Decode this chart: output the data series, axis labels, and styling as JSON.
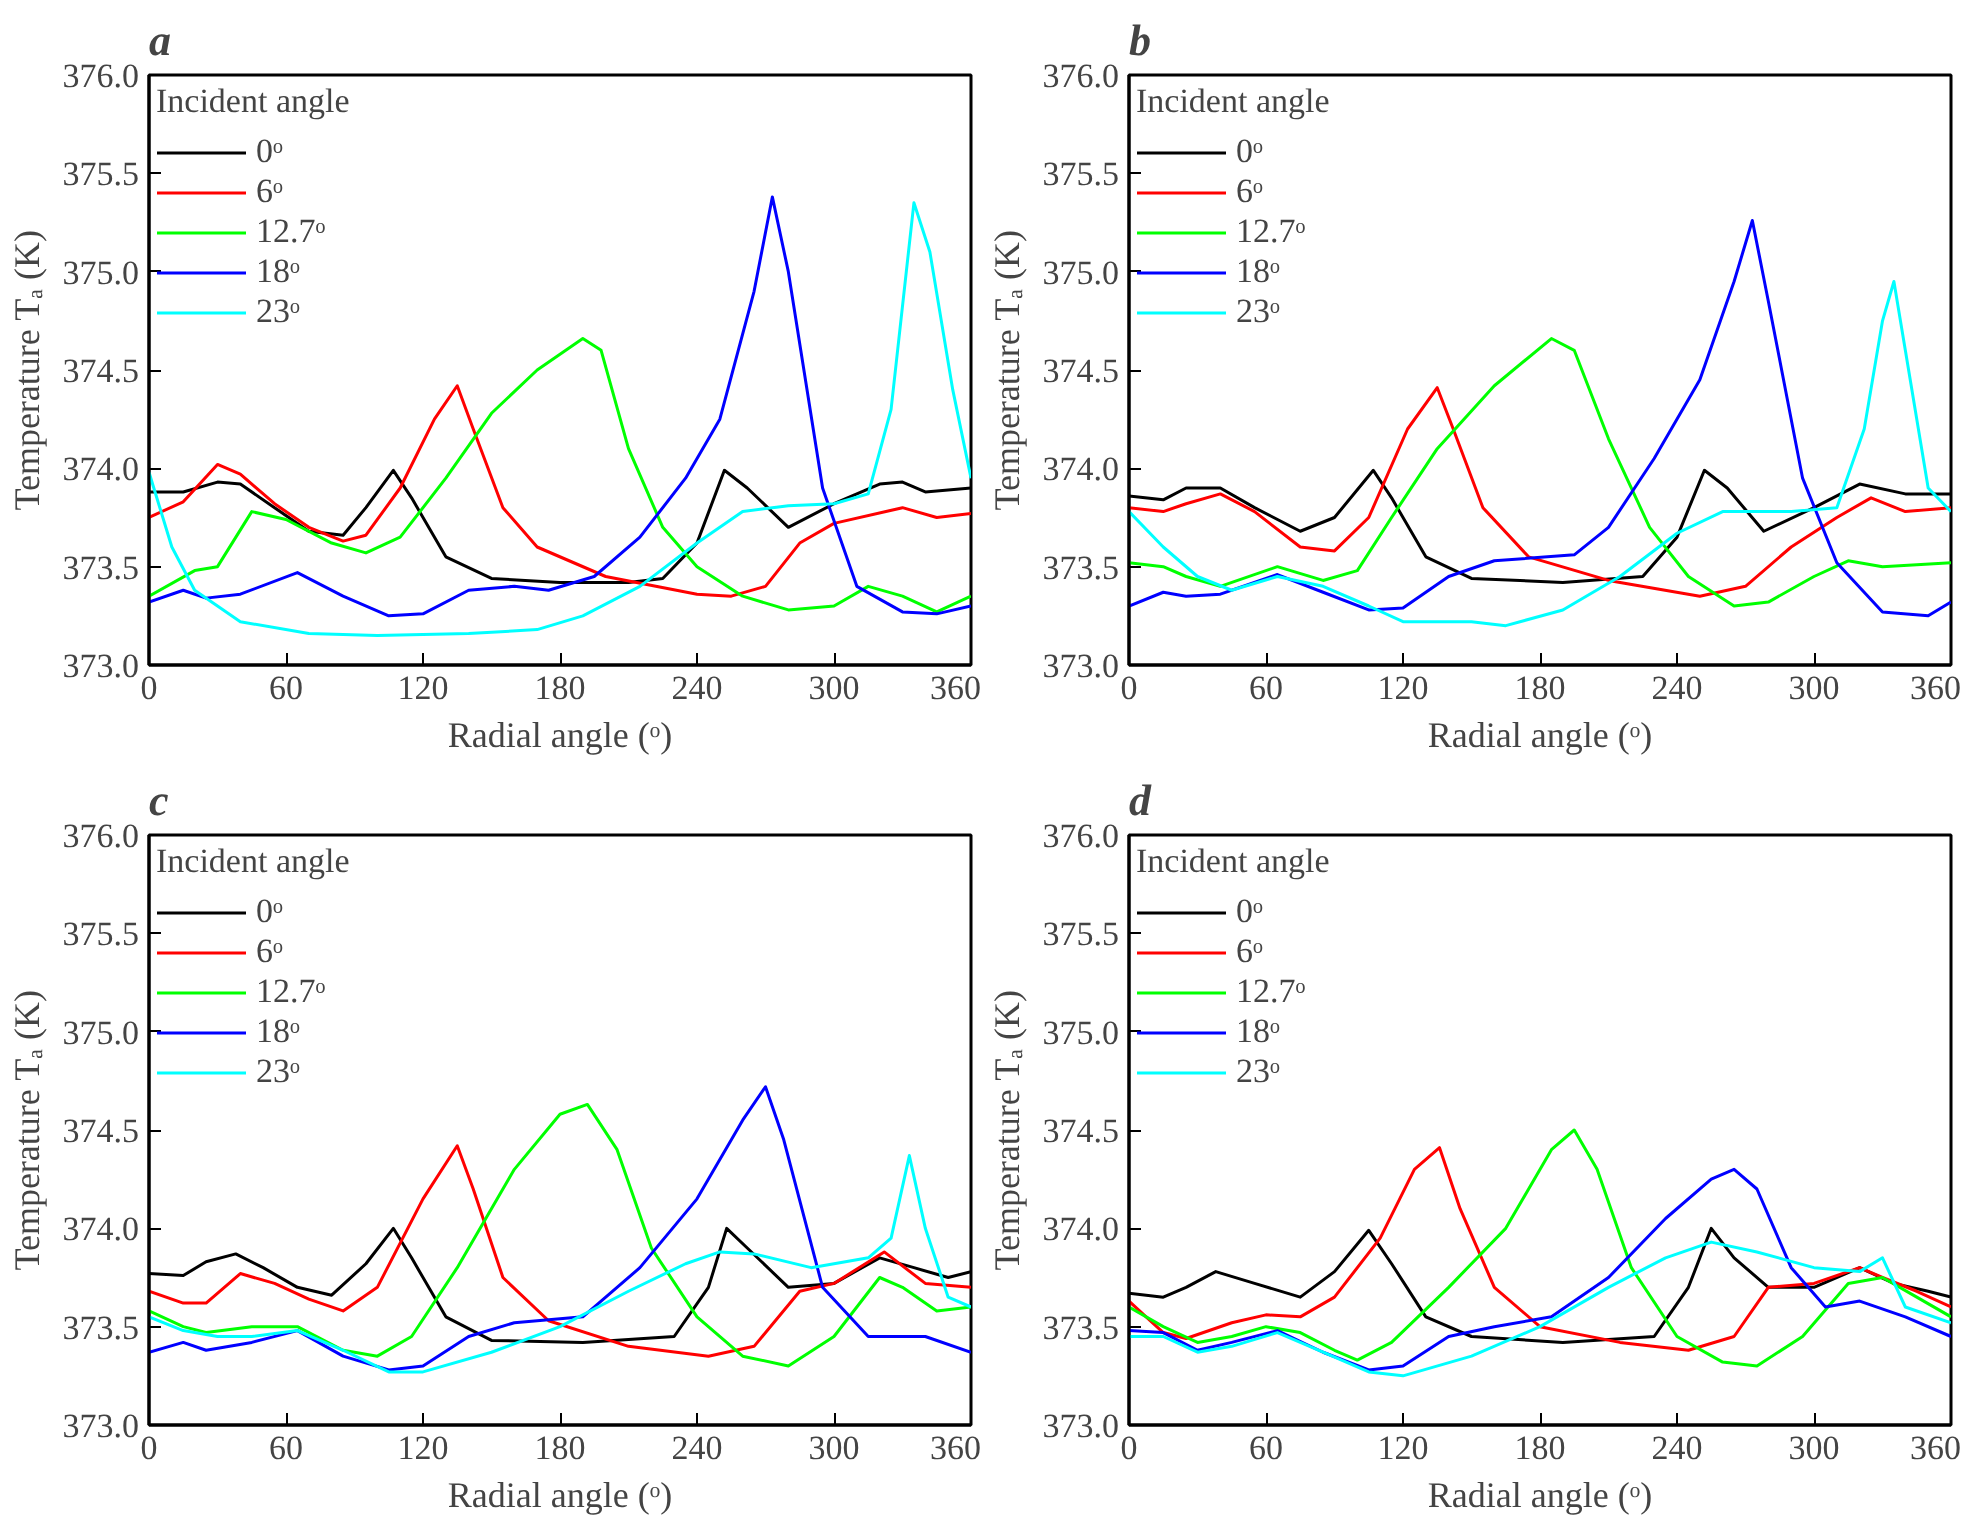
{
  "chart_data": [
    {
      "type": "line",
      "title": "a",
      "xlabel": "Radial angle (ᵒ)",
      "ylabel": "Temperature Tₐ (K)",
      "legend_title": "Incident angle",
      "legend": "top left",
      "grid": false,
      "xlim": [
        0,
        360
      ],
      "xticks": [
        0,
        60,
        120,
        180,
        240,
        300,
        360
      ],
      "ylim": [
        373.0,
        376.0
      ],
      "yticks": [
        {
          "value": 373.0,
          "label": "373.0"
        },
        {
          "value": 373.5,
          "label": "373.5"
        },
        {
          "value": 374.0,
          "label": "374.0"
        },
        {
          "value": 374.5,
          "label": "374.5"
        },
        {
          "value": 375.0,
          "label": "375.0"
        },
        {
          "value": 375.5,
          "label": "375.5"
        },
        {
          "value": 376.0,
          "label": "376.0"
        }
      ],
      "series": [
        {
          "name": "0ᵒ",
          "color": "#000000",
          "x": [
            0,
            15,
            30,
            40,
            55,
            70,
            85,
            95,
            107,
            115,
            130,
            150,
            180,
            210,
            225,
            240,
            252,
            262,
            280,
            300,
            320,
            330,
            340,
            360
          ],
          "values": [
            373.88,
            373.88,
            373.93,
            373.92,
            373.8,
            373.68,
            373.66,
            373.8,
            373.99,
            373.85,
            373.55,
            373.44,
            373.42,
            373.42,
            373.44,
            373.62,
            373.99,
            373.9,
            373.7,
            373.82,
            373.92,
            373.93,
            373.88,
            373.9
          ]
        },
        {
          "name": "6ᵒ",
          "color": "#ff0000",
          "x": [
            0,
            15,
            30,
            40,
            55,
            70,
            85,
            95,
            110,
            125,
            135,
            142,
            155,
            170,
            200,
            240,
            255,
            270,
            285,
            300,
            330,
            345,
            360
          ],
          "values": [
            373.75,
            373.83,
            374.02,
            373.97,
            373.82,
            373.7,
            373.63,
            373.66,
            373.9,
            374.25,
            374.42,
            374.2,
            373.8,
            373.6,
            373.45,
            373.36,
            373.35,
            373.4,
            373.62,
            373.72,
            373.8,
            373.75,
            373.77
          ]
        },
        {
          "name": "12.7ᵒ",
          "color": "#00ff00",
          "x": [
            0,
            20,
            30,
            45,
            60,
            80,
            95,
            110,
            130,
            150,
            170,
            190,
            198,
            210,
            225,
            240,
            260,
            280,
            300,
            315,
            330,
            345,
            360
          ],
          "values": [
            373.35,
            373.48,
            373.5,
            373.78,
            373.74,
            373.62,
            373.57,
            373.65,
            373.95,
            374.28,
            374.5,
            374.66,
            374.6,
            374.1,
            373.7,
            373.5,
            373.35,
            373.28,
            373.3,
            373.4,
            373.35,
            373.27,
            373.35
          ]
        },
        {
          "name": "18ᵒ",
          "color": "#0000ff",
          "x": [
            0,
            15,
            25,
            40,
            65,
            85,
            105,
            120,
            140,
            160,
            175,
            195,
            215,
            235,
            250,
            265,
            273,
            280,
            295,
            310,
            330,
            345,
            360
          ],
          "values": [
            373.32,
            373.38,
            373.34,
            373.36,
            373.47,
            373.35,
            373.25,
            373.26,
            373.38,
            373.4,
            373.38,
            373.45,
            373.65,
            373.95,
            374.25,
            374.9,
            375.38,
            375.0,
            373.9,
            373.4,
            373.27,
            373.26,
            373.3
          ]
        },
        {
          "name": "23ᵒ",
          "color": "#00ffff",
          "x": [
            0,
            10,
            20,
            40,
            70,
            100,
            140,
            170,
            190,
            215,
            240,
            260,
            280,
            300,
            315,
            325,
            335,
            342,
            352,
            360
          ],
          "values": [
            373.98,
            373.6,
            373.38,
            373.22,
            373.16,
            373.15,
            373.16,
            373.18,
            373.25,
            373.4,
            373.62,
            373.78,
            373.81,
            373.82,
            373.87,
            374.3,
            375.35,
            375.1,
            374.4,
            373.95
          ]
        }
      ]
    },
    {
      "type": "line",
      "title": "b",
      "xlabel": "Radial angle (ᵒ)",
      "ylabel": "Temperature Tₐ (K)",
      "legend_title": "Incident angle",
      "legend": "top left",
      "grid": false,
      "xlim": [
        0,
        360
      ],
      "xticks": [
        0,
        60,
        120,
        180,
        240,
        300,
        360
      ],
      "ylim": [
        373.0,
        376.0
      ],
      "yticks": [
        {
          "value": 373.0,
          "label": "373.0"
        },
        {
          "value": 373.5,
          "label": "373.5"
        },
        {
          "value": 374.0,
          "label": "374.0"
        },
        {
          "value": 374.5,
          "label": "374.5"
        },
        {
          "value": 375.0,
          "label": "375.0"
        },
        {
          "value": 375.5,
          "label": "375.5"
        },
        {
          "value": 376.0,
          "label": "376.0"
        }
      ],
      "series": [
        {
          "name": "0ᵒ",
          "color": "#000000",
          "x": [
            0,
            15,
            25,
            40,
            55,
            75,
            90,
            107,
            115,
            130,
            150,
            190,
            225,
            240,
            252,
            262,
            278,
            300,
            320,
            340,
            360
          ],
          "values": [
            373.86,
            373.84,
            373.9,
            373.9,
            373.8,
            373.68,
            373.75,
            373.99,
            373.85,
            373.55,
            373.44,
            373.42,
            373.45,
            373.65,
            373.99,
            373.9,
            373.68,
            373.8,
            373.92,
            373.87,
            373.87
          ]
        },
        {
          "name": "6ᵒ",
          "color": "#ff0000",
          "x": [
            0,
            15,
            25,
            40,
            55,
            75,
            90,
            105,
            122,
            135,
            142,
            155,
            175,
            210,
            250,
            270,
            290,
            310,
            325,
            340,
            360
          ],
          "values": [
            373.8,
            373.78,
            373.82,
            373.87,
            373.78,
            373.6,
            373.58,
            373.75,
            374.2,
            374.41,
            374.2,
            373.8,
            373.55,
            373.43,
            373.35,
            373.4,
            373.6,
            373.75,
            373.85,
            373.78,
            373.8
          ]
        },
        {
          "name": "12.7ᵒ",
          "color": "#00ff00",
          "x": [
            0,
            15,
            25,
            40,
            65,
            85,
            100,
            115,
            135,
            160,
            185,
            195,
            210,
            228,
            245,
            265,
            280,
            300,
            315,
            330,
            360
          ],
          "values": [
            373.52,
            373.5,
            373.45,
            373.4,
            373.5,
            373.43,
            373.48,
            373.75,
            374.1,
            374.42,
            374.66,
            374.6,
            374.15,
            373.7,
            373.45,
            373.3,
            373.32,
            373.45,
            373.53,
            373.5,
            373.52
          ]
        },
        {
          "name": "18ᵒ",
          "color": "#0000ff",
          "x": [
            0,
            15,
            25,
            40,
            65,
            85,
            105,
            120,
            140,
            160,
            195,
            210,
            230,
            250,
            265,
            273,
            280,
            295,
            310,
            330,
            350,
            360
          ],
          "values": [
            373.3,
            373.37,
            373.35,
            373.36,
            373.46,
            373.37,
            373.28,
            373.29,
            373.45,
            373.53,
            373.56,
            373.7,
            374.05,
            374.45,
            374.95,
            375.26,
            374.85,
            373.95,
            373.52,
            373.27,
            373.25,
            373.32
          ]
        },
        {
          "name": "23ᵒ",
          "color": "#00ffff",
          "x": [
            0,
            15,
            30,
            45,
            65,
            85,
            105,
            120,
            150,
            165,
            190,
            215,
            240,
            260,
            290,
            310,
            322,
            330,
            335,
            340,
            350,
            360
          ],
          "values": [
            373.78,
            373.6,
            373.45,
            373.38,
            373.45,
            373.4,
            373.3,
            373.22,
            373.22,
            373.2,
            373.28,
            373.45,
            373.67,
            373.78,
            373.78,
            373.8,
            374.2,
            374.75,
            374.95,
            374.6,
            373.9,
            373.78
          ]
        }
      ]
    },
    {
      "type": "line",
      "title": "c",
      "xlabel": "Radial angle (ᵒ)",
      "ylabel": "Temperature Tₐ (K)",
      "legend_title": "Incident angle",
      "legend": "top left",
      "grid": false,
      "xlim": [
        0,
        360
      ],
      "xticks": [
        0,
        60,
        120,
        180,
        240,
        300,
        360
      ],
      "ylim": [
        373.0,
        376.0
      ],
      "yticks": [
        {
          "value": 373.0,
          "label": "373.0"
        },
        {
          "value": 373.5,
          "label": "373.5"
        },
        {
          "value": 374.0,
          "label": "374.0"
        },
        {
          "value": 374.5,
          "label": "374.5"
        },
        {
          "value": 375.0,
          "label": "375.0"
        },
        {
          "value": 375.5,
          "label": "375.5"
        },
        {
          "value": 376.0,
          "label": "376.0"
        }
      ],
      "series": [
        {
          "name": "0ᵒ",
          "color": "#000000",
          "x": [
            0,
            15,
            25,
            38,
            50,
            65,
            80,
            95,
            107,
            115,
            130,
            150,
            190,
            230,
            245,
            253,
            262,
            280,
            300,
            320,
            335,
            350,
            360
          ],
          "values": [
            373.77,
            373.76,
            373.83,
            373.87,
            373.8,
            373.7,
            373.66,
            373.82,
            374.0,
            373.85,
            373.55,
            373.43,
            373.42,
            373.45,
            373.7,
            374.0,
            373.9,
            373.7,
            373.72,
            373.85,
            373.8,
            373.75,
            373.78
          ]
        },
        {
          "name": "6ᵒ",
          "color": "#ff0000",
          "x": [
            0,
            15,
            25,
            40,
            55,
            70,
            85,
            100,
            120,
            135,
            142,
            155,
            175,
            210,
            245,
            265,
            285,
            300,
            322,
            340,
            360
          ],
          "values": [
            373.68,
            373.62,
            373.62,
            373.77,
            373.72,
            373.64,
            373.58,
            373.7,
            374.15,
            374.42,
            374.2,
            373.75,
            373.53,
            373.4,
            373.35,
            373.4,
            373.68,
            373.72,
            373.88,
            373.72,
            373.7
          ]
        },
        {
          "name": "12.7ᵒ",
          "color": "#00ff00",
          "x": [
            0,
            15,
            25,
            45,
            65,
            85,
            100,
            115,
            135,
            160,
            180,
            192,
            205,
            220,
            240,
            260,
            280,
            300,
            320,
            330,
            345,
            360
          ],
          "values": [
            373.58,
            373.5,
            373.47,
            373.5,
            373.5,
            373.38,
            373.35,
            373.45,
            373.8,
            374.3,
            374.58,
            374.63,
            374.4,
            373.9,
            373.55,
            373.35,
            373.3,
            373.45,
            373.75,
            373.7,
            373.58,
            373.6
          ]
        },
        {
          "name": "18ᵒ",
          "color": "#0000ff",
          "x": [
            0,
            15,
            25,
            45,
            65,
            85,
            105,
            120,
            140,
            160,
            190,
            215,
            240,
            260,
            270,
            278,
            295,
            315,
            340,
            360
          ],
          "values": [
            373.37,
            373.42,
            373.38,
            373.42,
            373.48,
            373.35,
            373.28,
            373.3,
            373.45,
            373.52,
            373.55,
            373.8,
            374.15,
            374.55,
            374.72,
            374.45,
            373.7,
            373.45,
            373.45,
            373.37
          ]
        },
        {
          "name": "23ᵒ",
          "color": "#00ffff",
          "x": [
            0,
            15,
            30,
            45,
            65,
            85,
            105,
            120,
            150,
            180,
            210,
            235,
            250,
            265,
            290,
            315,
            325,
            333,
            340,
            350,
            360
          ],
          "values": [
            373.55,
            373.48,
            373.45,
            373.45,
            373.48,
            373.38,
            373.27,
            373.27,
            373.37,
            373.5,
            373.68,
            373.82,
            373.88,
            373.87,
            373.8,
            373.85,
            373.95,
            374.37,
            374.0,
            373.65,
            373.6
          ]
        }
      ]
    },
    {
      "type": "line",
      "title": "d",
      "xlabel": "Radial angle (ᵒ)",
      "ylabel": "Temperature Tₐ (K)",
      "legend_title": "Incident angle",
      "legend": "top left",
      "grid": false,
      "xlim": [
        0,
        360
      ],
      "xticks": [
        0,
        60,
        120,
        180,
        240,
        300,
        360
      ],
      "ylim": [
        373.0,
        376.0
      ],
      "yticks": [
        {
          "value": 373.0,
          "label": "373.0"
        },
        {
          "value": 373.5,
          "label": "373.5"
        },
        {
          "value": 374.0,
          "label": "374.0"
        },
        {
          "value": 374.5,
          "label": "374.5"
        },
        {
          "value": 375.0,
          "label": "375.0"
        },
        {
          "value": 375.5,
          "label": "375.5"
        },
        {
          "value": 376.0,
          "label": "376.0"
        }
      ],
      "series": [
        {
          "name": "0ᵒ",
          "color": "#000000",
          "x": [
            0,
            15,
            25,
            38,
            55,
            75,
            90,
            105,
            115,
            130,
            150,
            190,
            230,
            245,
            255,
            265,
            280,
            300,
            320,
            335,
            350,
            360
          ],
          "values": [
            373.67,
            373.65,
            373.7,
            373.78,
            373.72,
            373.65,
            373.78,
            373.99,
            373.82,
            373.55,
            373.45,
            373.42,
            373.45,
            373.7,
            374.0,
            373.85,
            373.7,
            373.7,
            373.8,
            373.72,
            373.68,
            373.65
          ]
        },
        {
          "name": "6ᵒ",
          "color": "#ff0000",
          "x": [
            0,
            15,
            25,
            45,
            60,
            75,
            90,
            110,
            125,
            136,
            145,
            160,
            180,
            215,
            245,
            265,
            280,
            300,
            320,
            330,
            345,
            360
          ],
          "values": [
            373.63,
            373.47,
            373.44,
            373.52,
            373.56,
            373.55,
            373.65,
            373.95,
            374.3,
            374.41,
            374.1,
            373.7,
            373.5,
            373.42,
            373.38,
            373.45,
            373.7,
            373.72,
            373.8,
            373.75,
            373.68,
            373.6
          ]
        },
        {
          "name": "12.7ᵒ",
          "color": "#00ff00",
          "x": [
            0,
            15,
            30,
            45,
            60,
            75,
            90,
            100,
            115,
            140,
            165,
            185,
            195,
            205,
            220,
            240,
            260,
            275,
            295,
            315,
            330,
            345,
            360
          ],
          "values": [
            373.6,
            373.5,
            373.42,
            373.45,
            373.5,
            373.47,
            373.38,
            373.33,
            373.42,
            373.7,
            374.0,
            374.4,
            374.5,
            374.3,
            373.8,
            373.45,
            373.32,
            373.3,
            373.45,
            373.72,
            373.75,
            373.65,
            373.55
          ]
        },
        {
          "name": "18ᵒ",
          "color": "#0000ff",
          "x": [
            0,
            15,
            30,
            45,
            65,
            85,
            105,
            120,
            140,
            160,
            185,
            210,
            235,
            255,
            265,
            275,
            290,
            305,
            320,
            340,
            360
          ],
          "values": [
            373.48,
            373.47,
            373.38,
            373.42,
            373.48,
            373.37,
            373.28,
            373.3,
            373.45,
            373.5,
            373.55,
            373.75,
            374.05,
            374.25,
            374.3,
            374.2,
            373.8,
            373.6,
            373.63,
            373.55,
            373.45
          ]
        },
        {
          "name": "23ᵒ",
          "color": "#00ffff",
          "x": [
            0,
            15,
            30,
            45,
            65,
            85,
            105,
            120,
            150,
            180,
            210,
            235,
            255,
            275,
            300,
            320,
            330,
            340,
            360
          ],
          "values": [
            373.45,
            373.45,
            373.37,
            373.4,
            373.47,
            373.37,
            373.27,
            373.25,
            373.35,
            373.5,
            373.7,
            373.85,
            373.93,
            373.88,
            373.8,
            373.78,
            373.85,
            373.6,
            373.52
          ]
        }
      ]
    }
  ]
}
